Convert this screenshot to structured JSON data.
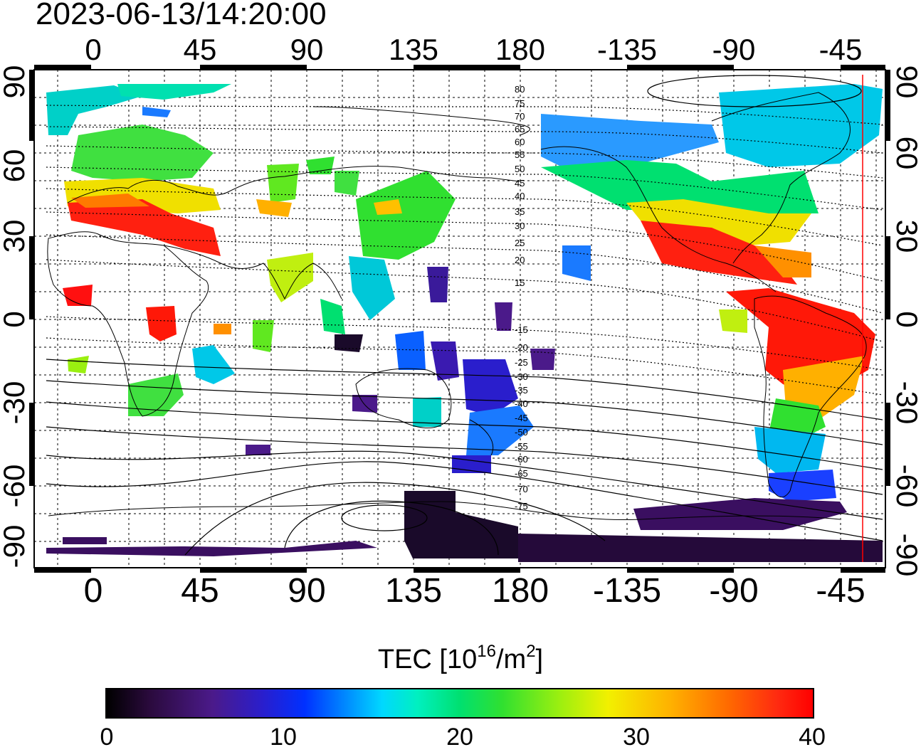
{
  "title": "2023-06-13/14:20:00",
  "lon_ticks": [
    "0",
    "45",
    "90",
    "135",
    "180",
    "-135",
    "-90",
    "-45"
  ],
  "lat_ticks_left": [
    "90",
    "60",
    "30",
    "0",
    "-30",
    "-60",
    "-90"
  ],
  "lat_ticks_right": [
    "90",
    "60",
    "30",
    "0",
    "-30",
    "-60",
    "-90"
  ],
  "magnetic_lat_labels": [
    "80",
    "75",
    "70",
    "65",
    "60",
    "55",
    "50",
    "45",
    "40",
    "35",
    "30",
    "25",
    "20",
    "15",
    "-15",
    "-20",
    "-25",
    "-30",
    "-35",
    "-40",
    "-45",
    "-50",
    "-55",
    "-60",
    "-65",
    "-70",
    "-75"
  ],
  "colorbar": {
    "title_prefix": "TEC  [10",
    "title_exp1": "16",
    "title_mid": "/m",
    "title_exp2": "2",
    "title_suffix": "]",
    "ticks": [
      "0",
      "10",
      "20",
      "30",
      "40"
    ],
    "min": 0,
    "max": 40
  },
  "colors": {
    "low": "#1a0a2a",
    "mid": "#00e070",
    "high": "#ff0000",
    "terminator": "#ff0000"
  }
}
